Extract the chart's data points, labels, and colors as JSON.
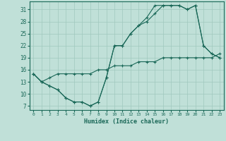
{
  "xlabel": "Humidex (Indice chaleur)",
  "background_color": "#c0e0d8",
  "grid_color": "#a0c8be",
  "line_color": "#1a6858",
  "xlim": [
    -0.5,
    23.5
  ],
  "ylim": [
    6,
    33
  ],
  "yticks": [
    7,
    10,
    13,
    16,
    19,
    22,
    25,
    28,
    31
  ],
  "xticks": [
    0,
    1,
    2,
    3,
    4,
    5,
    6,
    7,
    8,
    9,
    10,
    11,
    12,
    13,
    14,
    15,
    16,
    17,
    18,
    19,
    20,
    21,
    22,
    23
  ],
  "line1_x": [
    0,
    1,
    2,
    3,
    4,
    5,
    6,
    7,
    8,
    9,
    10,
    11,
    12,
    13,
    14,
    15,
    16,
    17,
    18,
    19,
    20,
    21,
    22,
    23
  ],
  "line1_y": [
    15,
    13,
    12,
    11,
    9,
    8,
    8,
    7,
    8,
    14,
    22,
    22,
    25,
    27,
    28,
    30,
    32,
    32,
    32,
    31,
    32,
    22,
    20,
    19
  ],
  "line2_x": [
    0,
    1,
    2,
    3,
    4,
    5,
    6,
    7,
    8,
    9,
    10,
    11,
    12,
    13,
    14,
    15,
    16,
    17,
    18,
    19,
    20,
    21,
    22,
    23
  ],
  "line2_y": [
    15,
    13,
    12,
    11,
    9,
    8,
    8,
    7,
    8,
    14,
    22,
    22,
    25,
    27,
    29,
    32,
    32,
    32,
    32,
    31,
    32,
    22,
    20,
    19
  ],
  "line3_x": [
    0,
    1,
    2,
    3,
    4,
    5,
    6,
    7,
    8,
    9,
    10,
    11,
    12,
    13,
    14,
    15,
    16,
    17,
    18,
    19,
    20,
    21,
    22,
    23
  ],
  "line3_y": [
    15,
    13,
    14,
    15,
    15,
    15,
    15,
    15,
    16,
    16,
    17,
    17,
    17,
    18,
    18,
    18,
    19,
    19,
    19,
    19,
    19,
    19,
    19,
    20
  ]
}
